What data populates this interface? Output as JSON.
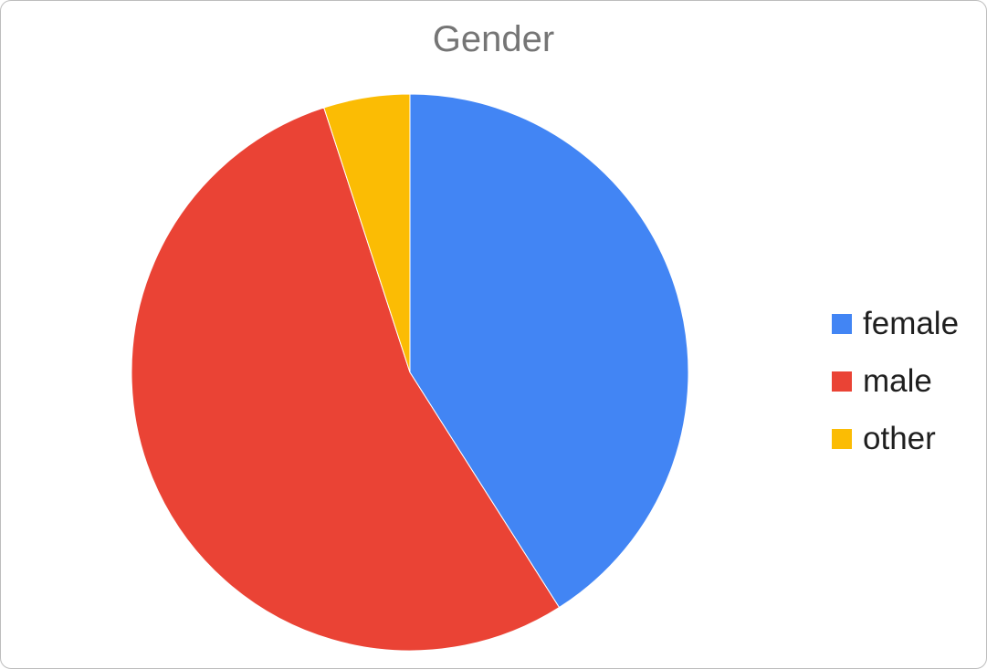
{
  "chart_data": {
    "type": "pie",
    "title": "Gender",
    "slices": [
      {
        "label": "female",
        "value": 41,
        "color": "#4285F4"
      },
      {
        "label": "male",
        "value": 54,
        "color": "#EA4335"
      },
      {
        "label": "other",
        "value": 5,
        "color": "#FBBC04"
      }
    ],
    "legend_position": "right"
  }
}
